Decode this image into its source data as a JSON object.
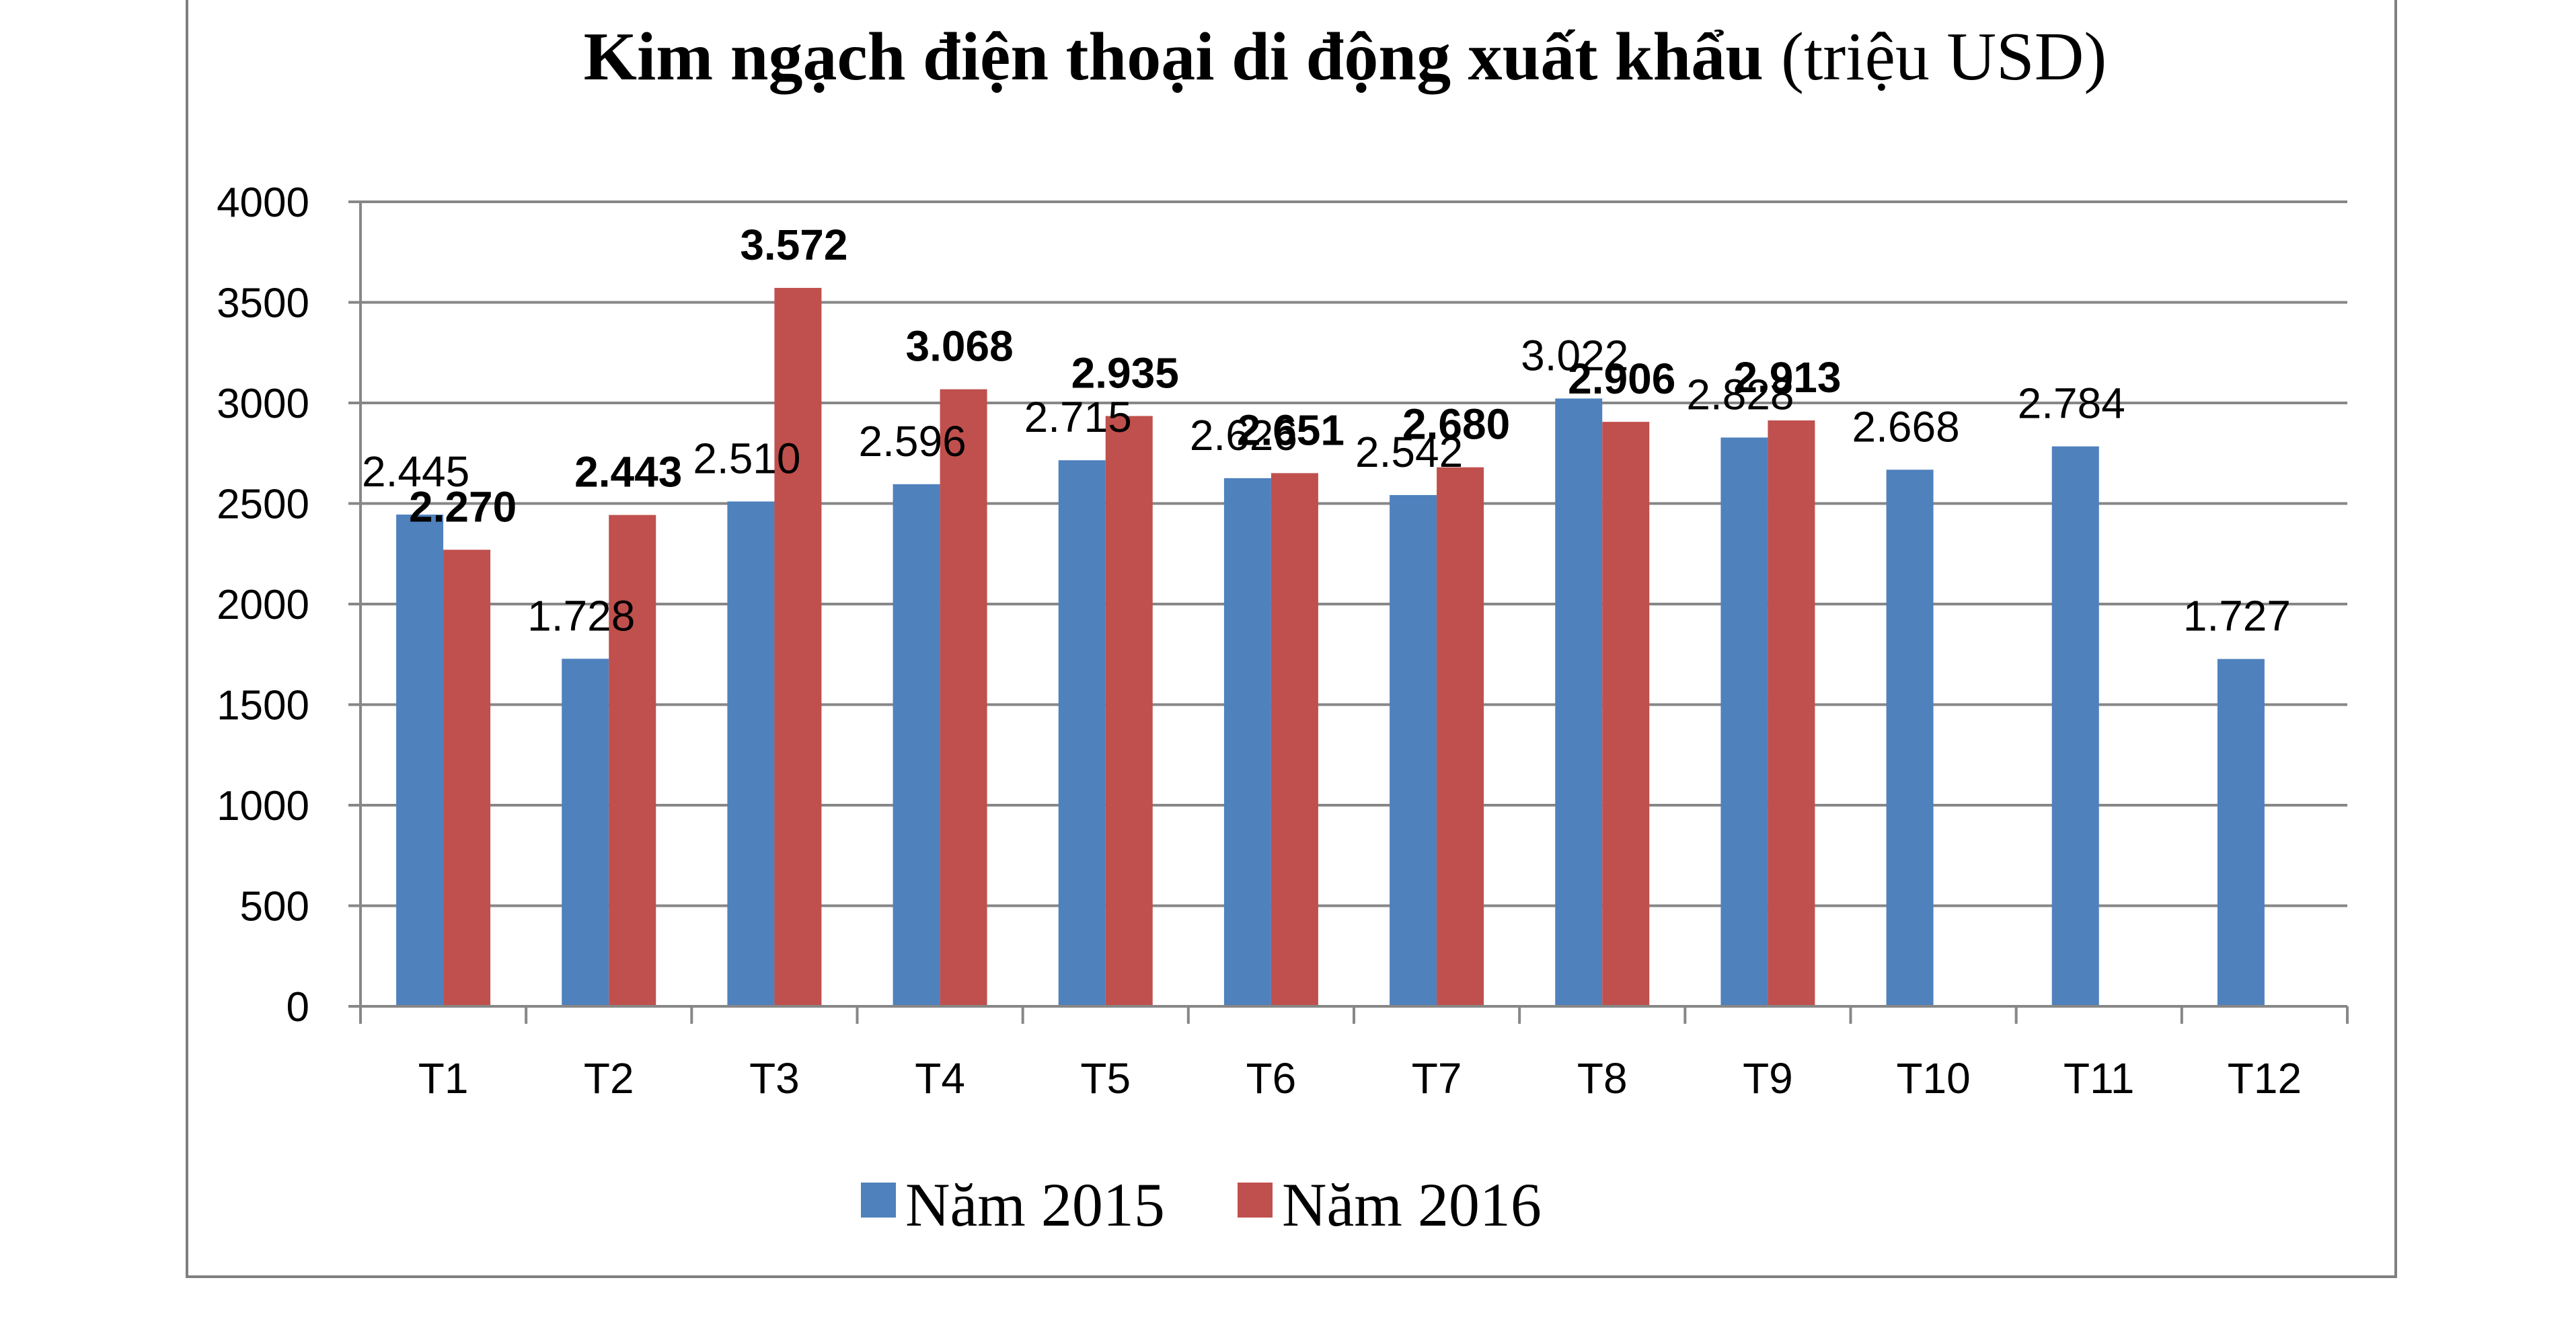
{
  "chart_data": {
    "type": "bar",
    "title_bold": "Kim ngạch điện thoại di động xuất khẩu",
    "title_normal": "(triệu USD)",
    "categories": [
      "T1",
      "T2",
      "T3",
      "T4",
      "T5",
      "T6",
      "T7",
      "T8",
      "T9",
      "T10",
      "T11",
      "T12"
    ],
    "ylim": [
      0,
      4000
    ],
    "yticks": [
      0,
      500,
      1000,
      1500,
      2000,
      2500,
      3000,
      3500,
      4000
    ],
    "grid": true,
    "legend_position": "bottom",
    "series": [
      {
        "name": "Năm 2015",
        "color": "#4f81bd",
        "values": [
          2445,
          1728,
          2510,
          2596,
          2715,
          2626,
          2542,
          3022,
          2828,
          2668,
          2784,
          1727
        ],
        "labels": [
          "2.445",
          "1.728",
          "2.510",
          "2.596",
          "2.715",
          "2.626",
          "2.542",
          "3.022",
          "2.828",
          "2.668",
          "2.784",
          "1.727"
        ]
      },
      {
        "name": "Năm 2016",
        "color": "#c0504d",
        "values": [
          2270,
          2443,
          3572,
          3068,
          2935,
          2651,
          2680,
          2906,
          2913,
          null,
          null,
          null
        ],
        "labels": [
          "2.270",
          "2.443",
          "3.572",
          "3.068",
          "2.935",
          "2.651",
          "2.680",
          "2.906",
          "2.913",
          null,
          null,
          null
        ]
      }
    ]
  }
}
